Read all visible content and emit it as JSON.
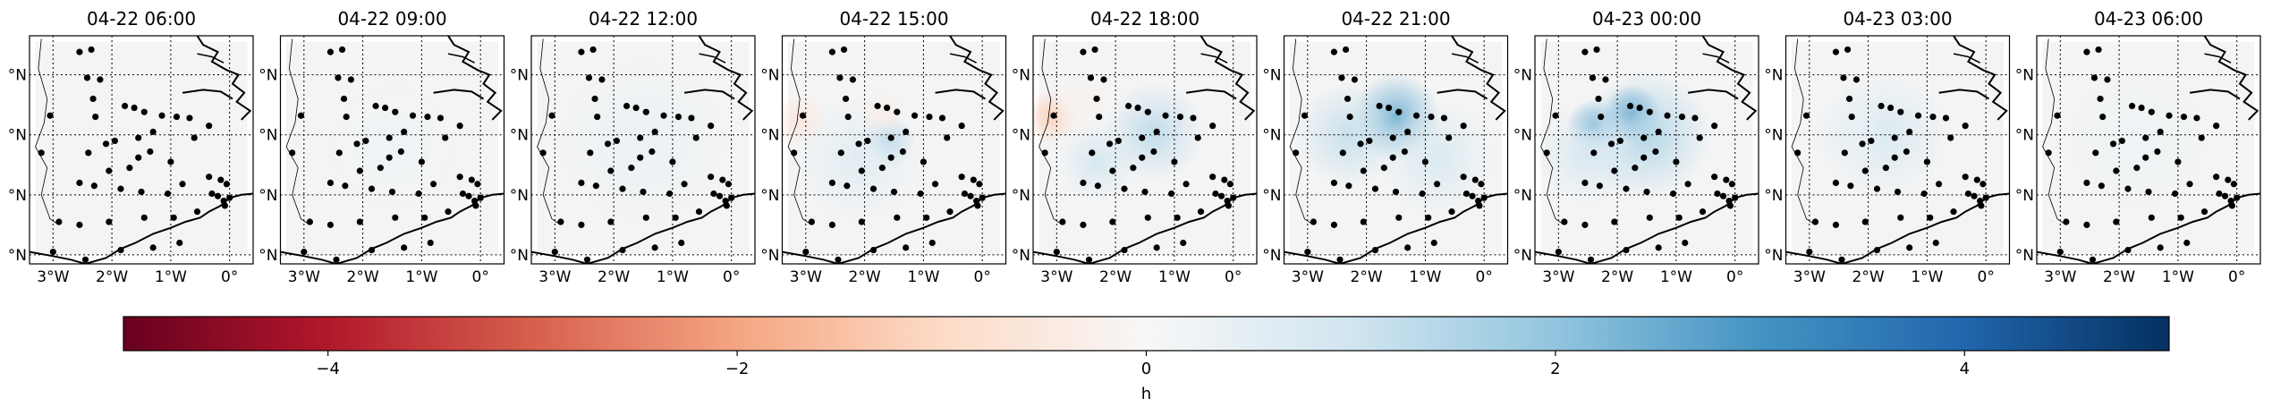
{
  "chart_data": {
    "type": "heatmap",
    "colormap": "RdBu",
    "colorbar": {
      "label": "h",
      "vmin": -5,
      "vmax": 5,
      "ticks": [
        -4,
        -2,
        0,
        2,
        4
      ],
      "tick_labels": [
        "−4",
        "−2",
        "0",
        "2",
        "4"
      ]
    },
    "map_extent": {
      "lon": [
        -3.4,
        0.4
      ],
      "lat": [
        50.85,
        54.65
      ]
    },
    "gridlines": {
      "lon": [
        -3,
        -2,
        -1,
        0
      ],
      "lat": [
        51.0,
        52.0,
        53.0,
        54.0
      ],
      "lon_labels": [
        "3°W",
        "2°W",
        "1°W",
        "0°"
      ],
      "lat_labels": [
        "°N",
        "°N",
        "°N",
        "°N"
      ]
    },
    "land_color": "#f4f4f4",
    "stations": [
      [
        -2.55,
        54.38
      ],
      [
        -2.35,
        54.42
      ],
      [
        -2.42,
        53.95
      ],
      [
        -2.2,
        53.92
      ],
      [
        -2.32,
        53.6
      ],
      [
        -3.05,
        53.32
      ],
      [
        -2.28,
        53.3
      ],
      [
        -1.78,
        53.48
      ],
      [
        -1.62,
        53.45
      ],
      [
        -1.45,
        53.38
      ],
      [
        -1.15,
        53.32
      ],
      [
        -1.3,
        53.05
      ],
      [
        -1.55,
        52.95
      ],
      [
        -1.95,
        52.9
      ],
      [
        -2.1,
        52.85
      ],
      [
        -2.4,
        52.7
      ],
      [
        -0.9,
        53.3
      ],
      [
        -0.68,
        53.28
      ],
      [
        -0.6,
        52.95
      ],
      [
        -0.35,
        53.15
      ],
      [
        -1.55,
        52.62
      ],
      [
        -1.35,
        52.72
      ],
      [
        -1.7,
        52.45
      ],
      [
        -2.05,
        52.4
      ],
      [
        -1.0,
        52.55
      ],
      [
        -2.55,
        52.2
      ],
      [
        -2.3,
        52.15
      ],
      [
        -1.85,
        52.1
      ],
      [
        -1.5,
        52.05
      ],
      [
        -1.05,
        52.02
      ],
      [
        -0.8,
        52.18
      ],
      [
        -0.35,
        52.3
      ],
      [
        -0.15,
        52.25
      ],
      [
        -0.05,
        52.18
      ],
      [
        -0.2,
        51.98
      ],
      [
        -0.08,
        51.82
      ],
      [
        -0.1,
        51.9
      ],
      [
        0.0,
        51.95
      ],
      [
        -0.3,
        52.02
      ],
      [
        -0.55,
        51.72
      ],
      [
        -0.95,
        51.62
      ],
      [
        -1.45,
        51.62
      ],
      [
        -2.05,
        51.55
      ],
      [
        -2.55,
        51.5
      ],
      [
        -2.9,
        51.55
      ],
      [
        -3.0,
        51.05
      ],
      [
        -2.45,
        50.92
      ],
      [
        -1.85,
        51.08
      ],
      [
        -1.3,
        51.12
      ],
      [
        -0.85,
        51.2
      ],
      [
        -3.2,
        52.7
      ]
    ],
    "panels": [
      {
        "title": "04-22 06:00",
        "anomalies": []
      },
      {
        "title": "04-22 09:00",
        "anomalies": [
          {
            "lon": -1.5,
            "lat": 52.8,
            "value": 0.2,
            "spread": 1.5
          }
        ]
      },
      {
        "title": "04-22 12:00",
        "anomalies": [
          {
            "lon": -1.5,
            "lat": 52.9,
            "value": 0.35,
            "spread": 1.6
          }
        ]
      },
      {
        "title": "04-22 15:00",
        "anomalies": [
          {
            "lon": -1.6,
            "lat": 52.9,
            "value": 1.6,
            "spread": 0.45
          },
          {
            "lon": -2.1,
            "lat": 52.6,
            "value": 0.6,
            "spread": 1.1
          },
          {
            "lon": -3.1,
            "lat": 53.25,
            "value": -0.6,
            "spread": 0.45
          },
          {
            "lon": -1.7,
            "lat": 53.35,
            "value": -0.35,
            "spread": 0.4
          }
        ]
      },
      {
        "title": "04-22 18:00",
        "anomalies": [
          {
            "lon": -1.35,
            "lat": 53.05,
            "value": 1.3,
            "spread": 0.85
          },
          {
            "lon": -2.3,
            "lat": 52.55,
            "value": 0.9,
            "spread": 0.7
          },
          {
            "lon": -3.1,
            "lat": 53.3,
            "value": -1.2,
            "spread": 0.45
          },
          {
            "lon": -2.6,
            "lat": 53.5,
            "value": -0.2,
            "spread": 0.5
          }
        ]
      },
      {
        "title": "04-22 21:00",
        "anomalies": [
          {
            "lon": -1.5,
            "lat": 53.3,
            "value": 2.4,
            "spread": 0.75
          },
          {
            "lon": -2.3,
            "lat": 53.0,
            "value": 1.2,
            "spread": 0.9
          },
          {
            "lon": -0.8,
            "lat": 52.6,
            "value": 0.8,
            "spread": 1.0
          }
        ]
      },
      {
        "title": "04-23 00:00",
        "anomalies": [
          {
            "lon": -1.75,
            "lat": 53.35,
            "value": 3.0,
            "spread": 0.5
          },
          {
            "lon": -2.4,
            "lat": 53.15,
            "value": 2.6,
            "spread": 0.45
          },
          {
            "lon": -1.5,
            "lat": 53.0,
            "value": 1.5,
            "spread": 1.1
          },
          {
            "lon": -2.5,
            "lat": 52.7,
            "value": 0.9,
            "spread": 0.9
          }
        ]
      },
      {
        "title": "04-23 03:00",
        "anomalies": [
          {
            "lon": -1.7,
            "lat": 53.0,
            "value": 0.8,
            "spread": 1.1
          },
          {
            "lon": -2.3,
            "lat": 53.05,
            "value": 0.4,
            "spread": 0.7
          }
        ]
      },
      {
        "title": "04-23 06:00",
        "anomalies": [
          {
            "lon": -1.7,
            "lat": 52.9,
            "value": 0.25,
            "spread": 1.5
          }
        ]
      }
    ]
  }
}
